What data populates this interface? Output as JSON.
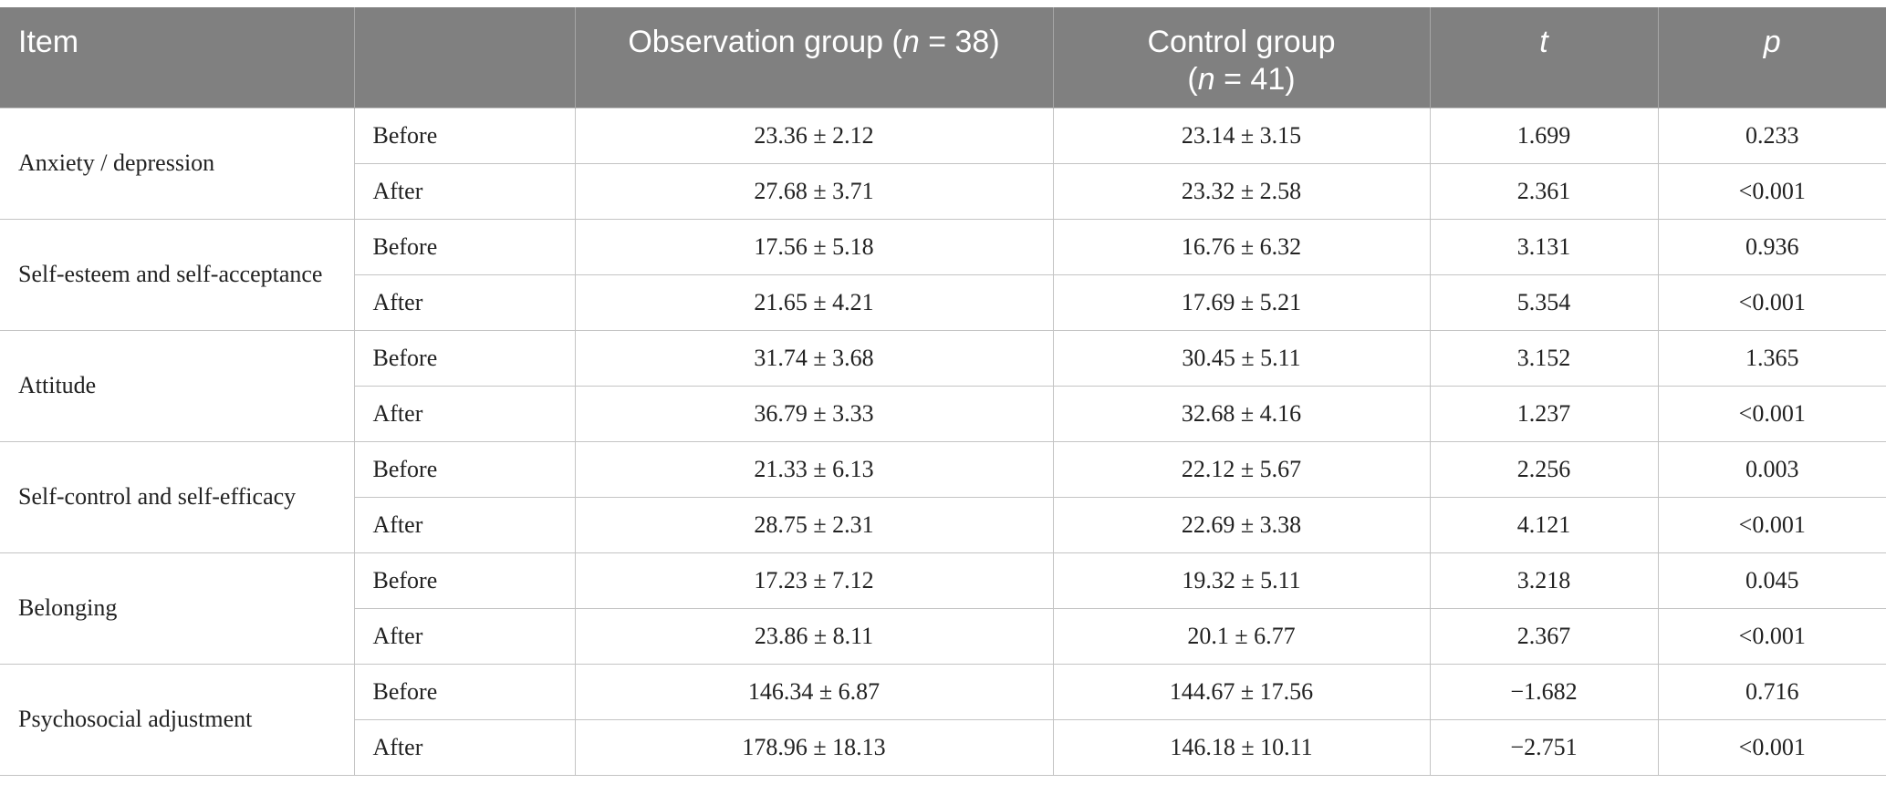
{
  "headers": {
    "item": "Item",
    "phase": "",
    "obs_pre": "Observation group (",
    "obs_n": "n",
    "obs_post": " = 38)",
    "ctrl_line1": "Control group",
    "ctrl_pre": "(",
    "ctrl_n": "n",
    "ctrl_post": " = 41)",
    "t": "t",
    "p": "p"
  },
  "rows": [
    {
      "item": "Anxiety / depression",
      "before": {
        "phase": "Before",
        "obs": "23.36 ± 2.12",
        "ctrl": "23.14 ± 3.15",
        "t": "1.699",
        "p": "0.233"
      },
      "after": {
        "phase": "After",
        "obs": "27.68 ± 3.71",
        "ctrl": "23.32 ± 2.58",
        "t": "2.361",
        "p": "<0.001"
      }
    },
    {
      "item": "Self-esteem and self-acceptance",
      "before": {
        "phase": "Before",
        "obs": "17.56 ± 5.18",
        "ctrl": "16.76 ± 6.32",
        "t": "3.131",
        "p": "0.936"
      },
      "after": {
        "phase": "After",
        "obs": "21.65 ± 4.21",
        "ctrl": "17.69 ± 5.21",
        "t": "5.354",
        "p": "<0.001"
      }
    },
    {
      "item": "Attitude",
      "before": {
        "phase": "Before",
        "obs": "31.74 ± 3.68",
        "ctrl": "30.45 ± 5.11",
        "t": "3.152",
        "p": "1.365"
      },
      "after": {
        "phase": "After",
        "obs": "36.79 ± 3.33",
        "ctrl": "32.68 ± 4.16",
        "t": "1.237",
        "p": "<0.001"
      }
    },
    {
      "item": "Self-control and self-efficacy",
      "before": {
        "phase": "Before",
        "obs": "21.33 ± 6.13",
        "ctrl": "22.12 ± 5.67",
        "t": "2.256",
        "p": "0.003"
      },
      "after": {
        "phase": "After",
        "obs": "28.75 ± 2.31",
        "ctrl": "22.69 ± 3.38",
        "t": "4.121",
        "p": "<0.001"
      }
    },
    {
      "item": "Belonging",
      "before": {
        "phase": "Before",
        "obs": "17.23 ± 7.12",
        "ctrl": "19.32 ± 5.11",
        "t": "3.218",
        "p": "0.045"
      },
      "after": {
        "phase": "After",
        "obs": "23.86 ± 8.11",
        "ctrl": "20.1 ± 6.77",
        "t": "2.367",
        "p": "<0.001"
      }
    },
    {
      "item": "Psychosocial adjustment",
      "before": {
        "phase": "Before",
        "obs": "146.34 ± 6.87",
        "ctrl": "144.67 ± 17.56",
        "t": "−1.682",
        "p": "0.716"
      },
      "after": {
        "phase": "After",
        "obs": "178.96 ± 18.13",
        "ctrl": "146.18 ± 10.11",
        "t": "−2.751",
        "p": "<0.001"
      }
    }
  ]
}
